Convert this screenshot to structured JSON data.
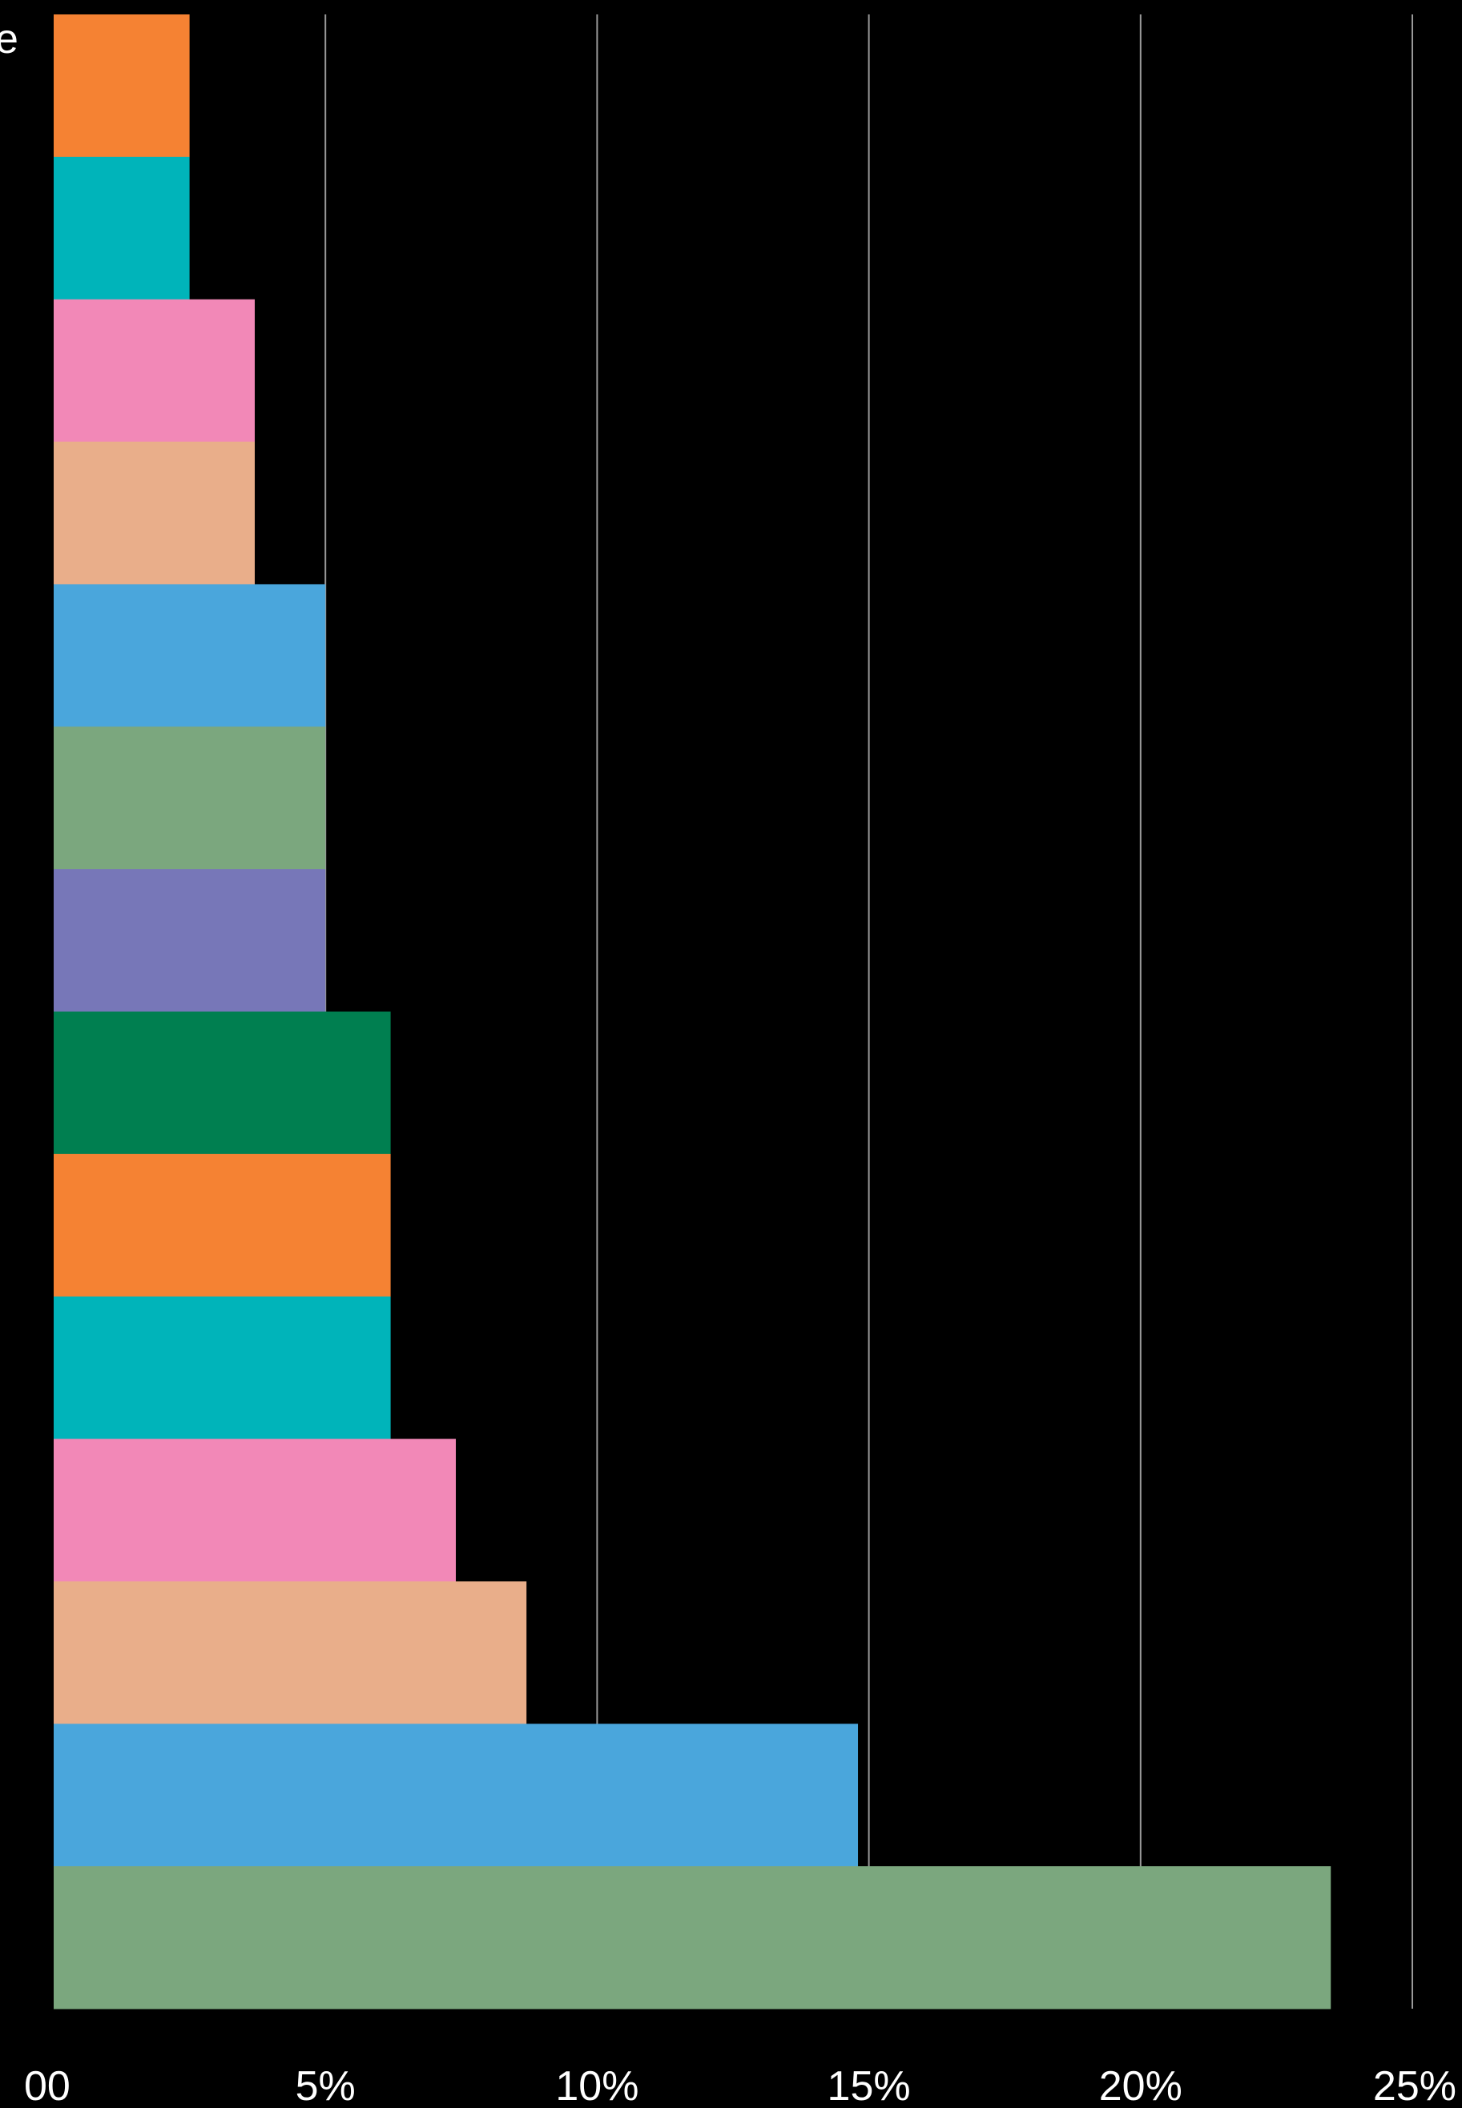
{
  "chart_data": {
    "type": "bar",
    "orientation": "horizontal",
    "title": "",
    "xlabel": "",
    "ylabel": "",
    "xlim": [
      0,
      25
    ],
    "x_ticks": [
      0,
      5,
      10,
      15,
      20,
      25
    ],
    "x_tick_labels": [
      "00",
      "5%",
      "10%",
      "15%",
      "20%",
      "25%"
    ],
    "grid": "vertical",
    "edge_label_left": "e",
    "values": [
      2.5,
      2.5,
      3.7,
      3.7,
      5.0,
      5.0,
      5.0,
      6.2,
      6.2,
      6.2,
      7.4,
      8.7,
      14.8,
      23.5
    ],
    "colors": [
      "#F58233",
      "#00B4BA",
      "#F288B7",
      "#E9AE8A",
      "#4AA6DC",
      "#7BA77E",
      "#7777B8",
      "#007F50",
      "#F58233",
      "#00B4BA",
      "#F288B7",
      "#E9AE8A",
      "#4AA6DC",
      "#7BA77E"
    ],
    "background": "#000000",
    "grid_color": "#9a9a9a",
    "text_color": "#ffffff"
  }
}
